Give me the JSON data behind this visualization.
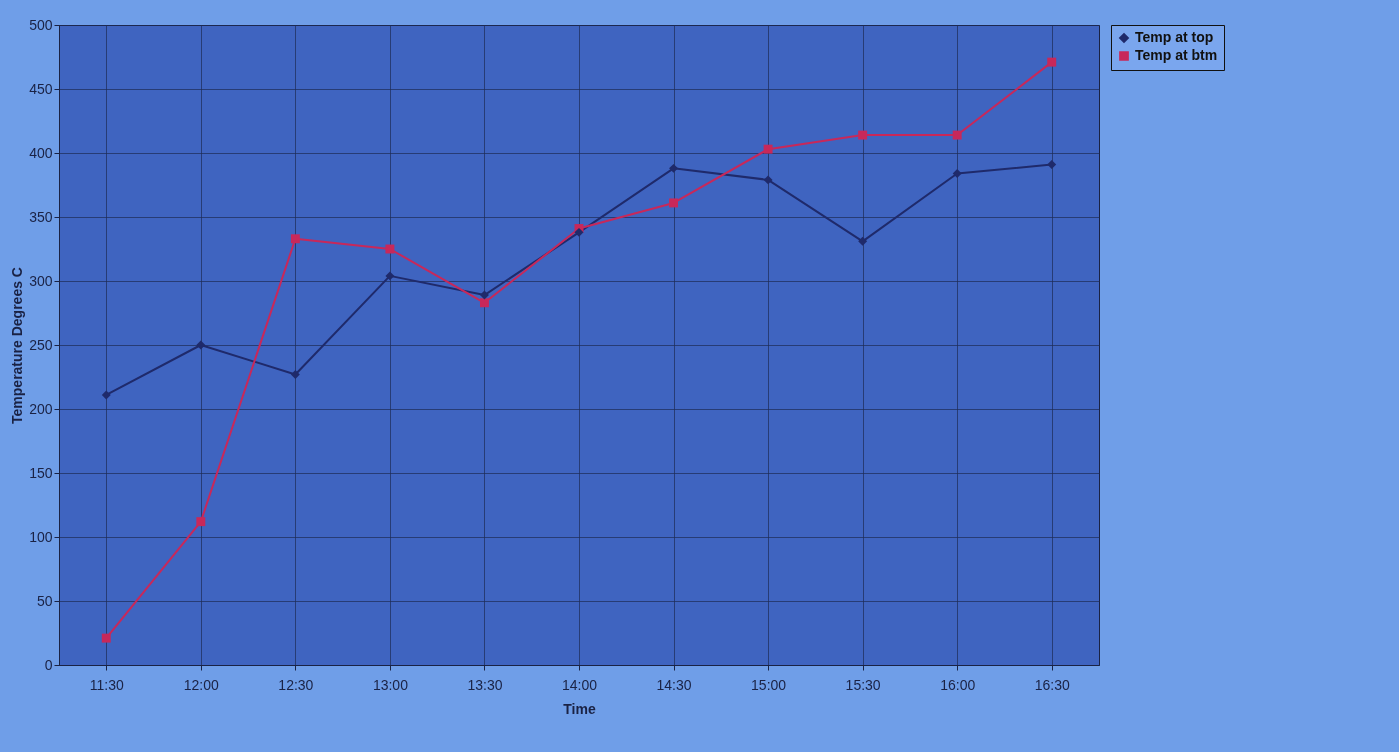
{
  "chart_data": {
    "type": "line",
    "xlabel": "Time",
    "ylabel": "Temperature Degrees C",
    "categories": [
      "11:30",
      "12:00",
      "12:30",
      "13:00",
      "13:30",
      "14:00",
      "14:30",
      "15:00",
      "15:30",
      "16:00",
      "16:30"
    ],
    "series": [
      {
        "name": "Temp at top",
        "color": "#1f2a6b",
        "marker": "diamond",
        "values": [
          211,
          250,
          227,
          304,
          289,
          338,
          388,
          379,
          331,
          384,
          391
        ]
      },
      {
        "name": "Temp at btm",
        "color": "#c8285a",
        "marker": "square",
        "values": [
          21,
          112,
          333,
          325,
          283,
          341,
          361,
          403,
          414,
          414,
          471
        ]
      }
    ],
    "ylim": [
      0,
      500
    ],
    "yticks": [
      0,
      50,
      100,
      150,
      200,
      250,
      300,
      350,
      400,
      450,
      500
    ],
    "grid": true,
    "legend": "right"
  }
}
